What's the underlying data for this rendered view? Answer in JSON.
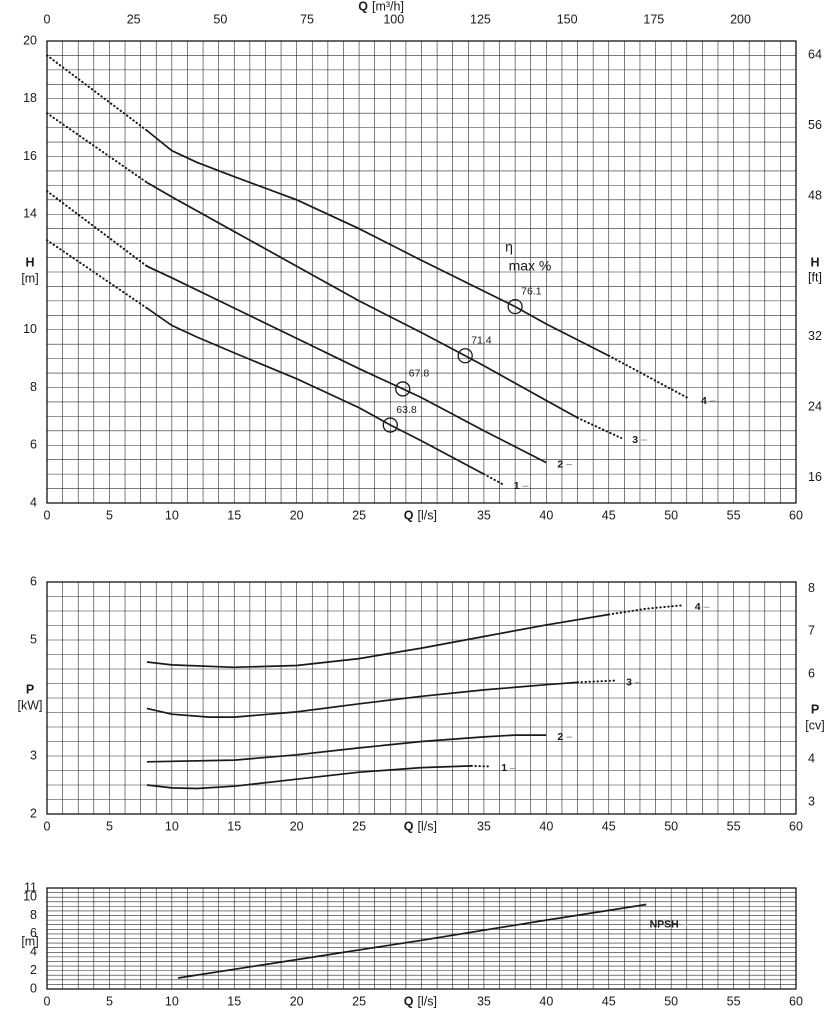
{
  "chart_data": [
    {
      "type": "line",
      "xlabel": "Q",
      "xunit": "[l/s]",
      "ylabel": "H",
      "yunit": "[m]",
      "y2label": "H",
      "y2unit": "[ft]",
      "x2label": "Q",
      "x2unit": "[m³/h]",
      "xlim": [
        0,
        60
      ],
      "xticks": [
        0,
        5,
        10,
        15,
        20,
        25,
        35,
        40,
        45,
        50,
        55,
        60
      ],
      "ylim": [
        4,
        20
      ],
      "yticks": [
        4,
        6,
        8,
        10,
        14,
        16,
        18,
        20
      ],
      "x2lim": [
        0,
        216
      ],
      "x2ticks": [
        0,
        25,
        50,
        75,
        100,
        125,
        150,
        175,
        200
      ],
      "y2lim": [
        13.12,
        65.62
      ],
      "y2ticks": [
        16,
        24,
        32,
        48,
        56,
        64
      ],
      "grid": true,
      "x_grid_step": 1.25,
      "y_grid_step": 0.5,
      "color": "#1a1a1a",
      "annotation": [
        "η",
        "max %"
      ],
      "series": [
        {
          "name": "4",
          "x": [
            8,
            10,
            12,
            15,
            20,
            25,
            30,
            37.5,
            40,
            45
          ],
          "values": [
            16.9,
            16.2,
            15.8,
            15.3,
            14.5,
            13.5,
            12.4,
            10.8,
            10.2,
            9.1
          ],
          "dotted_x": [
            0,
            8,
            null,
            45,
            51.5
          ],
          "dotted_values": [
            19.5,
            16.9,
            null,
            9.1,
            7.6
          ]
        },
        {
          "name": "3",
          "x": [
            8,
            10,
            15,
            20,
            25,
            30,
            33.5,
            35,
            40,
            42.5
          ],
          "values": [
            15.1,
            14.6,
            13.4,
            12.2,
            11.0,
            9.9,
            9.1,
            8.75,
            7.55,
            6.95
          ],
          "dotted_x": [
            0,
            8,
            null,
            42.5,
            46
          ],
          "dotted_values": [
            17.5,
            15.1,
            null,
            6.95,
            6.25
          ]
        },
        {
          "name": "2",
          "x": [
            8,
            10,
            15,
            20,
            25,
            28.5,
            30,
            35,
            40
          ],
          "values": [
            12.2,
            11.8,
            10.75,
            9.7,
            8.65,
            7.95,
            7.65,
            6.5,
            5.4
          ],
          "dotted_x": [
            0,
            8
          ],
          "dotted_values": [
            14.8,
            12.2
          ]
        },
        {
          "name": "1",
          "x": [
            8,
            10,
            12,
            15,
            20,
            25,
            27.5,
            30,
            35
          ],
          "values": [
            10.75,
            10.15,
            9.75,
            9.2,
            8.3,
            7.3,
            6.7,
            6.15,
            5.0
          ],
          "dotted_x": [
            0,
            8,
            null,
            35,
            36.5
          ],
          "dotted_values": [
            13.1,
            10.75,
            null,
            5.0,
            4.65
          ]
        }
      ],
      "points": [
        {
          "x": 27.5,
          "y": 6.7,
          "label": "63.8"
        },
        {
          "x": 28.5,
          "y": 7.95,
          "label": "67.8"
        },
        {
          "x": 33.5,
          "y": 9.1,
          "label": "71.4"
        },
        {
          "x": 37.5,
          "y": 10.8,
          "label": "76.1"
        }
      ]
    },
    {
      "type": "line",
      "xlabel": "Q",
      "xunit": "[l/s]",
      "ylabel": "P",
      "yunit": "[kW]",
      "y2label": "P",
      "y2unit": "[cv]",
      "xlim": [
        0,
        60
      ],
      "xticks": [
        0,
        5,
        10,
        15,
        20,
        25,
        35,
        40,
        45,
        50,
        55,
        60
      ],
      "ylim": [
        2,
        6
      ],
      "yticks": [
        2,
        3,
        5,
        6
      ],
      "y2lim": [
        2.719,
        8.158
      ],
      "y2ticks": [
        3,
        4,
        6,
        7,
        8
      ],
      "grid": true,
      "x_grid_step": 1.25,
      "y_grid_step": 0.25,
      "color": "#1a1a1a",
      "series": [
        {
          "name": "4",
          "x": [
            8,
            10,
            15,
            20,
            25,
            30,
            35,
            40,
            45
          ],
          "values": [
            4.62,
            4.57,
            4.53,
            4.56,
            4.68,
            4.86,
            5.06,
            5.26,
            5.44
          ],
          "dotted_x": [
            45,
            48,
            51
          ],
          "dotted_values": [
            5.44,
            5.54,
            5.6
          ]
        },
        {
          "name": "3",
          "x": [
            8,
            10,
            13,
            15,
            20,
            25,
            30,
            35,
            40,
            42.5
          ],
          "values": [
            3.82,
            3.72,
            3.67,
            3.67,
            3.76,
            3.9,
            4.03,
            4.14,
            4.23,
            4.27
          ],
          "dotted_x": [
            42.5,
            45.5
          ],
          "dotted_values": [
            4.27,
            4.3
          ]
        },
        {
          "name": "2",
          "x": [
            8,
            15,
            20,
            25,
            30,
            35,
            37.5,
            40
          ],
          "values": [
            2.9,
            2.93,
            3.02,
            3.14,
            3.25,
            3.33,
            3.36,
            3.36
          ]
        },
        {
          "name": "1",
          "x": [
            8,
            10,
            12,
            15,
            20,
            25,
            30,
            34
          ],
          "values": [
            2.5,
            2.45,
            2.44,
            2.48,
            2.6,
            2.72,
            2.8,
            2.83
          ],
          "dotted_x": [
            34,
            35.5
          ],
          "dotted_values": [
            2.83,
            2.82
          ]
        }
      ]
    },
    {
      "type": "line",
      "xlabel": "Q",
      "xunit": "[l/s]",
      "yunit": "[m]",
      "xlim": [
        0,
        60
      ],
      "xticks": [
        0,
        5,
        10,
        15,
        20,
        25,
        35,
        40,
        45,
        50,
        55,
        60
      ],
      "ylim": [
        0,
        11
      ],
      "yticks": [
        0,
        2,
        4,
        6,
        8,
        10,
        11
      ],
      "grid": true,
      "x_grid_step": 1.25,
      "y_grid_step": 0.5,
      "color": "#1a1a1a",
      "series": [
        {
          "name": "NPSH",
          "x": [
            10.5,
            20,
            30,
            40,
            48
          ],
          "values": [
            1.2,
            3.2,
            5.3,
            7.5,
            9.2
          ]
        }
      ]
    }
  ]
}
